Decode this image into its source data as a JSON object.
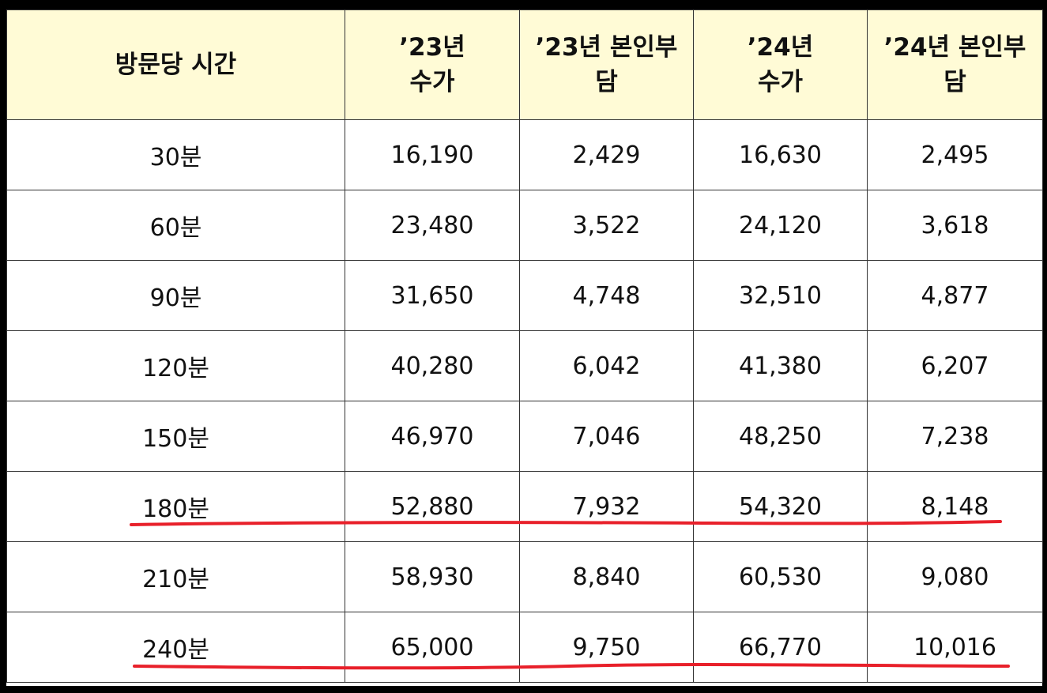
{
  "table": {
    "headers": [
      "방문당 시간",
      "’23년\n수가",
      "’23년 본인부\n담",
      "’24년\n수가",
      "’24년 본인부\n담"
    ],
    "rows": [
      [
        "30분",
        "16,190",
        "2,429",
        "16,630",
        "2,495"
      ],
      [
        "60분",
        "23,480",
        "3,522",
        "24,120",
        "3,618"
      ],
      [
        "90분",
        "31,650",
        "4,748",
        "32,510",
        "4,877"
      ],
      [
        "120분",
        "40,280",
        "6,042",
        "41,380",
        "6,207"
      ],
      [
        "150분",
        "46,970",
        "7,046",
        "48,250",
        "7,238"
      ],
      [
        "180분",
        "52,880",
        "7,932",
        "54,320",
        "8,148"
      ],
      [
        "210분",
        "58,930",
        "8,840",
        "60,530",
        "9,080"
      ],
      [
        "240분",
        "65,000",
        "9,750",
        "66,770",
        "10,016"
      ]
    ],
    "highlighted_rows": [
      "180분",
      "240분"
    ]
  },
  "colors": {
    "header_bg": "#fffbd6",
    "border": "#333333",
    "frame": "#000000",
    "underline": "#e8202a"
  }
}
